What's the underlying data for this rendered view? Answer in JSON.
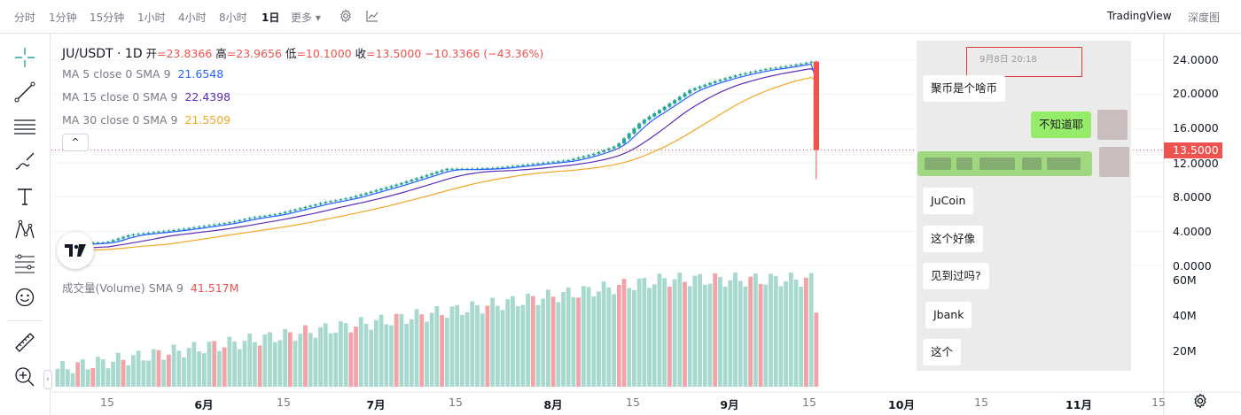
{
  "toolbar": {
    "intervals": [
      "分时",
      "1分钟",
      "15分钟",
      "1小时",
      "4小时",
      "8小时",
      "1日"
    ],
    "active_interval": "1日",
    "more_label": "更多",
    "more_caret": "▾",
    "brand": "TradingView",
    "depth_label": "深度图"
  },
  "legend": {
    "symbol": "JU/USDT · 1D",
    "open_label": "开",
    "open": "=23.8366",
    "high_label": "高",
    "high": "=23.9656",
    "low_label": "低",
    "low": "=10.1000",
    "close_label": "收",
    "close": "=13.5000",
    "change": "−10.3366 (−43.36%)",
    "ma": [
      {
        "name": "MA 5 close 0 SMA 9",
        "value": "21.6548",
        "color": "#2962ff"
      },
      {
        "name": "MA 15 close 0 SMA 9",
        "value": "22.4398",
        "color": "#5b2cba"
      },
      {
        "name": "MA 30 close 0 SMA 9",
        "value": "21.5509",
        "color": "#f5a623"
      }
    ],
    "collapse_glyph": "^"
  },
  "volume_legend": {
    "name": "成交量(Volume) SMA 9",
    "value": "41.517M"
  },
  "price_axis": {
    "ticks": [
      "24.0000",
      "20.0000",
      "16.0000",
      "12.0000",
      "8.0000",
      "4.0000",
      "0.0000"
    ],
    "current": "13.5000",
    "current_color": "#ef5350"
  },
  "volume_axis": {
    "ticks": [
      "60M",
      "40M",
      "20M"
    ]
  },
  "time_axis": {
    "ticks": [
      "15",
      "6月",
      "15",
      "7月",
      "15",
      "8月",
      "15",
      "9月",
      "15",
      "10月",
      "15",
      "11月",
      "15"
    ]
  },
  "colors": {
    "up": "#26a69a",
    "down": "#ef5350",
    "vol_up": "#a7d9cf",
    "vol_down": "#f2a3a8",
    "ma5": "#2962ff",
    "ma15": "#5b2cba",
    "ma30": "#f5a623"
  },
  "chart_data": {
    "type": "candlestick",
    "last_candle": {
      "open": 23.8366,
      "high": 23.9656,
      "low": 10.1,
      "close": 13.5
    },
    "close_series": [
      2.0,
      2.6,
      2.7,
      3.6,
      3.9,
      4.2,
      4.6,
      5.0,
      5.6,
      6.0,
      6.7,
      7.4,
      7.9,
      8.7,
      9.5,
      10.4,
      11.3,
      11.3,
      11.4,
      11.7,
      12.0,
      12.3,
      13.0,
      14.0,
      16.8,
      18.6,
      20.5,
      21.5,
      22.3,
      22.9,
      23.3,
      23.8,
      13.5
    ],
    "ylim": [
      0,
      25
    ],
    "ma5_last": 21.6548,
    "ma15_last": 22.4398,
    "ma30_last": 21.5509,
    "volume_last": "41.517M",
    "volume_ylim": [
      0,
      65
    ]
  },
  "chat": {
    "timestamp": "9月8日 20:18",
    "messages": [
      {
        "side": "left",
        "text": "聚币是个啥币"
      },
      {
        "side": "right",
        "text": "不知道耶"
      },
      {
        "side": "left",
        "text": "JuCoin"
      },
      {
        "side": "left",
        "text": "这个好像"
      },
      {
        "side": "left",
        "text": "见到过吗?"
      },
      {
        "side": "left",
        "text": "Jbank"
      },
      {
        "side": "left",
        "text": "这个"
      }
    ]
  }
}
